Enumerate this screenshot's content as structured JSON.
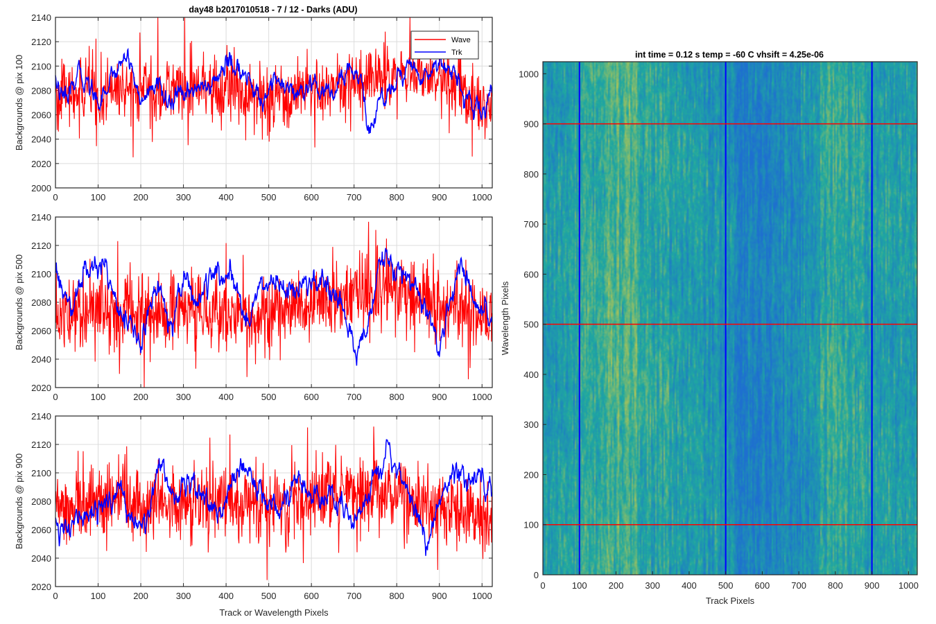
{
  "figure": {
    "title": "day48 b2017010518 - 7 / 12 - Darks (ADU)",
    "right_title": "int time = 0.12 s    temp = -60 C    vhsift = 4.25e-06"
  },
  "colors": {
    "wave": "#ff0000",
    "trk": "#0000ff",
    "axis": "#262626",
    "grid": "#dcdcdc",
    "image_low": "#1e6fd0",
    "image_mid": "#1fa8a0",
    "image_high": "#c8c84a"
  },
  "legend": {
    "entries": [
      "Wave",
      "Trk"
    ],
    "placement": "top-right"
  },
  "chart_data": [
    {
      "type": "line",
      "panel": "top",
      "xlabel": "",
      "ylabel": "Backgrounds @ pix 100",
      "xlim": [
        0,
        1024
      ],
      "ylim": [
        2000,
        2140
      ],
      "xticks": [
        0,
        100,
        200,
        300,
        400,
        500,
        600,
        700,
        800,
        900,
        1000
      ],
      "yticks": [
        2000,
        2020,
        2040,
        2060,
        2080,
        2100,
        2120,
        2140
      ],
      "grid": true,
      "series": [
        {
          "name": "Wave",
          "color": "#ff0000",
          "mean": 2078,
          "noise": 13,
          "trend": [
            [
              0,
              2075
            ],
            [
              100,
              2080
            ],
            [
              200,
              2082
            ],
            [
              300,
              2080
            ],
            [
              400,
              2082
            ],
            [
              500,
              2070
            ],
            [
              600,
              2080
            ],
            [
              700,
              2085
            ],
            [
              800,
              2095
            ],
            [
              900,
              2090
            ],
            [
              1024,
              2065
            ]
          ]
        },
        {
          "name": "Trk",
          "color": "#0000ff",
          "mean": 2078,
          "noise": 3,
          "trend": [
            [
              0,
              2090
            ],
            [
              20,
              2068
            ],
            [
              60,
              2095
            ],
            [
              100,
              2072
            ],
            [
              130,
              2090
            ],
            [
              170,
              2112
            ],
            [
              200,
              2070
            ],
            [
              240,
              2085
            ],
            [
              270,
              2070
            ],
            [
              300,
              2075
            ],
            [
              330,
              2085
            ],
            [
              360,
              2080
            ],
            [
              400,
              2103
            ],
            [
              440,
              2095
            ],
            [
              480,
              2070
            ],
            [
              510,
              2090
            ],
            [
              560,
              2075
            ],
            [
              610,
              2080
            ],
            [
              650,
              2075
            ],
            [
              690,
              2100
            ],
            [
              720,
              2088
            ],
            [
              730,
              2045
            ],
            [
              760,
              2070
            ],
            [
              800,
              2090
            ],
            [
              830,
              2100
            ],
            [
              860,
              2090
            ],
            [
              900,
              2105
            ],
            [
              940,
              2095
            ],
            [
              960,
              2070
            ],
            [
              1000,
              2060
            ],
            [
              1024,
              2082
            ]
          ]
        }
      ]
    },
    {
      "type": "line",
      "panel": "middle",
      "xlabel": "",
      "ylabel": "Backgrounds @ pix 500",
      "xlim": [
        0,
        1024
      ],
      "ylim": [
        2020,
        2140
      ],
      "xticks": [
        0,
        100,
        200,
        300,
        400,
        500,
        600,
        700,
        800,
        900,
        1000
      ],
      "yticks": [
        2020,
        2040,
        2060,
        2080,
        2100,
        2120,
        2140
      ],
      "grid": true,
      "series": [
        {
          "name": "Wave",
          "color": "#ff0000",
          "mean": 2074,
          "noise": 13,
          "trend": [
            [
              0,
              2070
            ],
            [
              100,
              2075
            ],
            [
              200,
              2072
            ],
            [
              300,
              2074
            ],
            [
              400,
              2070
            ],
            [
              500,
              2072
            ],
            [
              600,
              2075
            ],
            [
              700,
              2085
            ],
            [
              800,
              2092
            ],
            [
              900,
              2080
            ],
            [
              1024,
              2066
            ]
          ]
        },
        {
          "name": "Trk",
          "color": "#0000ff",
          "mean": 2085,
          "noise": 3,
          "trend": [
            [
              0,
              2100
            ],
            [
              20,
              2085
            ],
            [
              40,
              2070
            ],
            [
              60,
              2100
            ],
            [
              120,
              2105
            ],
            [
              160,
              2070
            ],
            [
              200,
              2050
            ],
            [
              240,
              2095
            ],
            [
              270,
              2065
            ],
            [
              300,
              2100
            ],
            [
              330,
              2080
            ],
            [
              360,
              2095
            ],
            [
              400,
              2100
            ],
            [
              450,
              2070
            ],
            [
              480,
              2090
            ],
            [
              520,
              2095
            ],
            [
              560,
              2085
            ],
            [
              600,
              2095
            ],
            [
              650,
              2085
            ],
            [
              690,
              2060
            ],
            [
              705,
              2045
            ],
            [
              740,
              2070
            ],
            [
              760,
              2108
            ],
            [
              820,
              2100
            ],
            [
              860,
              2080
            ],
            [
              885,
              2060
            ],
            [
              900,
              2040
            ],
            [
              920,
              2075
            ],
            [
              950,
              2108
            ],
            [
              980,
              2080
            ],
            [
              1000,
              2070
            ],
            [
              1024,
              2065
            ]
          ]
        }
      ]
    },
    {
      "type": "line",
      "panel": "bottom",
      "xlabel": "Track or Wavelength Pixels",
      "ylabel": "Backgrounds @ pix 900",
      "xlim": [
        0,
        1024
      ],
      "ylim": [
        2020,
        2140
      ],
      "xticks": [
        0,
        100,
        200,
        300,
        400,
        500,
        600,
        700,
        800,
        900,
        1000
      ],
      "yticks": [
        2020,
        2040,
        2060,
        2080,
        2100,
        2120,
        2140
      ],
      "grid": true,
      "series": [
        {
          "name": "Wave",
          "color": "#ff0000",
          "mean": 2078,
          "noise": 13,
          "trend": [
            [
              0,
              2075
            ],
            [
              100,
              2080
            ],
            [
              200,
              2080
            ],
            [
              300,
              2078
            ],
            [
              400,
              2080
            ],
            [
              500,
              2078
            ],
            [
              600,
              2082
            ],
            [
              700,
              2088
            ],
            [
              800,
              2085
            ],
            [
              900,
              2075
            ],
            [
              1024,
              2065
            ]
          ]
        },
        {
          "name": "Trk",
          "color": "#0000ff",
          "mean": 2082,
          "noise": 3,
          "trend": [
            [
              0,
              2070
            ],
            [
              30,
              2055
            ],
            [
              60,
              2070
            ],
            [
              100,
              2075
            ],
            [
              150,
              2085
            ],
            [
              180,
              2070
            ],
            [
              210,
              2055
            ],
            [
              240,
              2110
            ],
            [
              280,
              2085
            ],
            [
              320,
              2095
            ],
            [
              350,
              2085
            ],
            [
              380,
              2070
            ],
            [
              440,
              2105
            ],
            [
              490,
              2085
            ],
            [
              530,
              2075
            ],
            [
              560,
              2095
            ],
            [
              620,
              2080
            ],
            [
              650,
              2085
            ],
            [
              700,
              2060
            ],
            [
              740,
              2095
            ],
            [
              780,
              2120
            ],
            [
              820,
              2090
            ],
            [
              850,
              2070
            ],
            [
              870,
              2050
            ],
            [
              900,
              2080
            ],
            [
              930,
              2100
            ],
            [
              970,
              2095
            ],
            [
              1000,
              2100
            ],
            [
              1024,
              2092
            ]
          ]
        }
      ]
    },
    {
      "type": "heatmap",
      "panel": "right",
      "xlabel": "Track Pixels",
      "ylabel": "Wavelength Pixels",
      "xlim": [
        0,
        1024
      ],
      "ylim": [
        0,
        1024
      ],
      "xticks": [
        0,
        100,
        200,
        300,
        400,
        500,
        600,
        700,
        800,
        900,
        1000
      ],
      "yticks": [
        0,
        100,
        200,
        300,
        400,
        500,
        600,
        700,
        800,
        900,
        1000
      ],
      "vertical_markers": [
        100,
        500,
        900
      ],
      "horizontal_markers": [
        100,
        500,
        900
      ],
      "marker_colors": {
        "vertical": "#0000ff",
        "horizontal": "#ff0000"
      }
    }
  ]
}
